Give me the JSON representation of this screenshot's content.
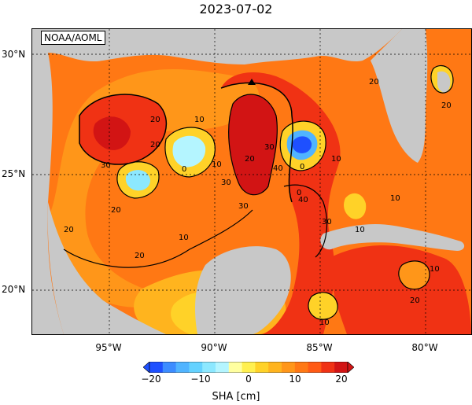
{
  "title": "2023-07-02",
  "credit": "NOAA/AOML",
  "y_labels": [
    "30°N",
    "25°N",
    "20°N"
  ],
  "x_labels": [
    "95°W",
    "90°W",
    "85°W",
    "80°W"
  ],
  "colorbar": {
    "title": "SHA [cm]",
    "ticks": [
      "−20",
      "−10",
      "0",
      "10",
      "20"
    ],
    "colors": [
      "#1e50ff",
      "#3c8cff",
      "#50b4ff",
      "#64d2ff",
      "#8ce8ff",
      "#b4f5ff",
      "#ffffa0",
      "#fff050",
      "#ffd228",
      "#ffb41e",
      "#ff9619",
      "#ff7814",
      "#ff5a14",
      "#f03214",
      "#d21414"
    ]
  },
  "contour_labels": [
    "20",
    "10",
    "30",
    "0",
    "10",
    "0",
    "10",
    "20",
    "30",
    "40",
    "30",
    "20",
    "0",
    "10",
    "40",
    "30",
    "20",
    "20",
    "10",
    "20",
    "30",
    "10",
    "20",
    "10",
    "20",
    "10",
    "20"
  ],
  "colors": {
    "land": "#c8c8c8",
    "ocean_base": "#ff7814",
    "contour": "#000000"
  }
}
